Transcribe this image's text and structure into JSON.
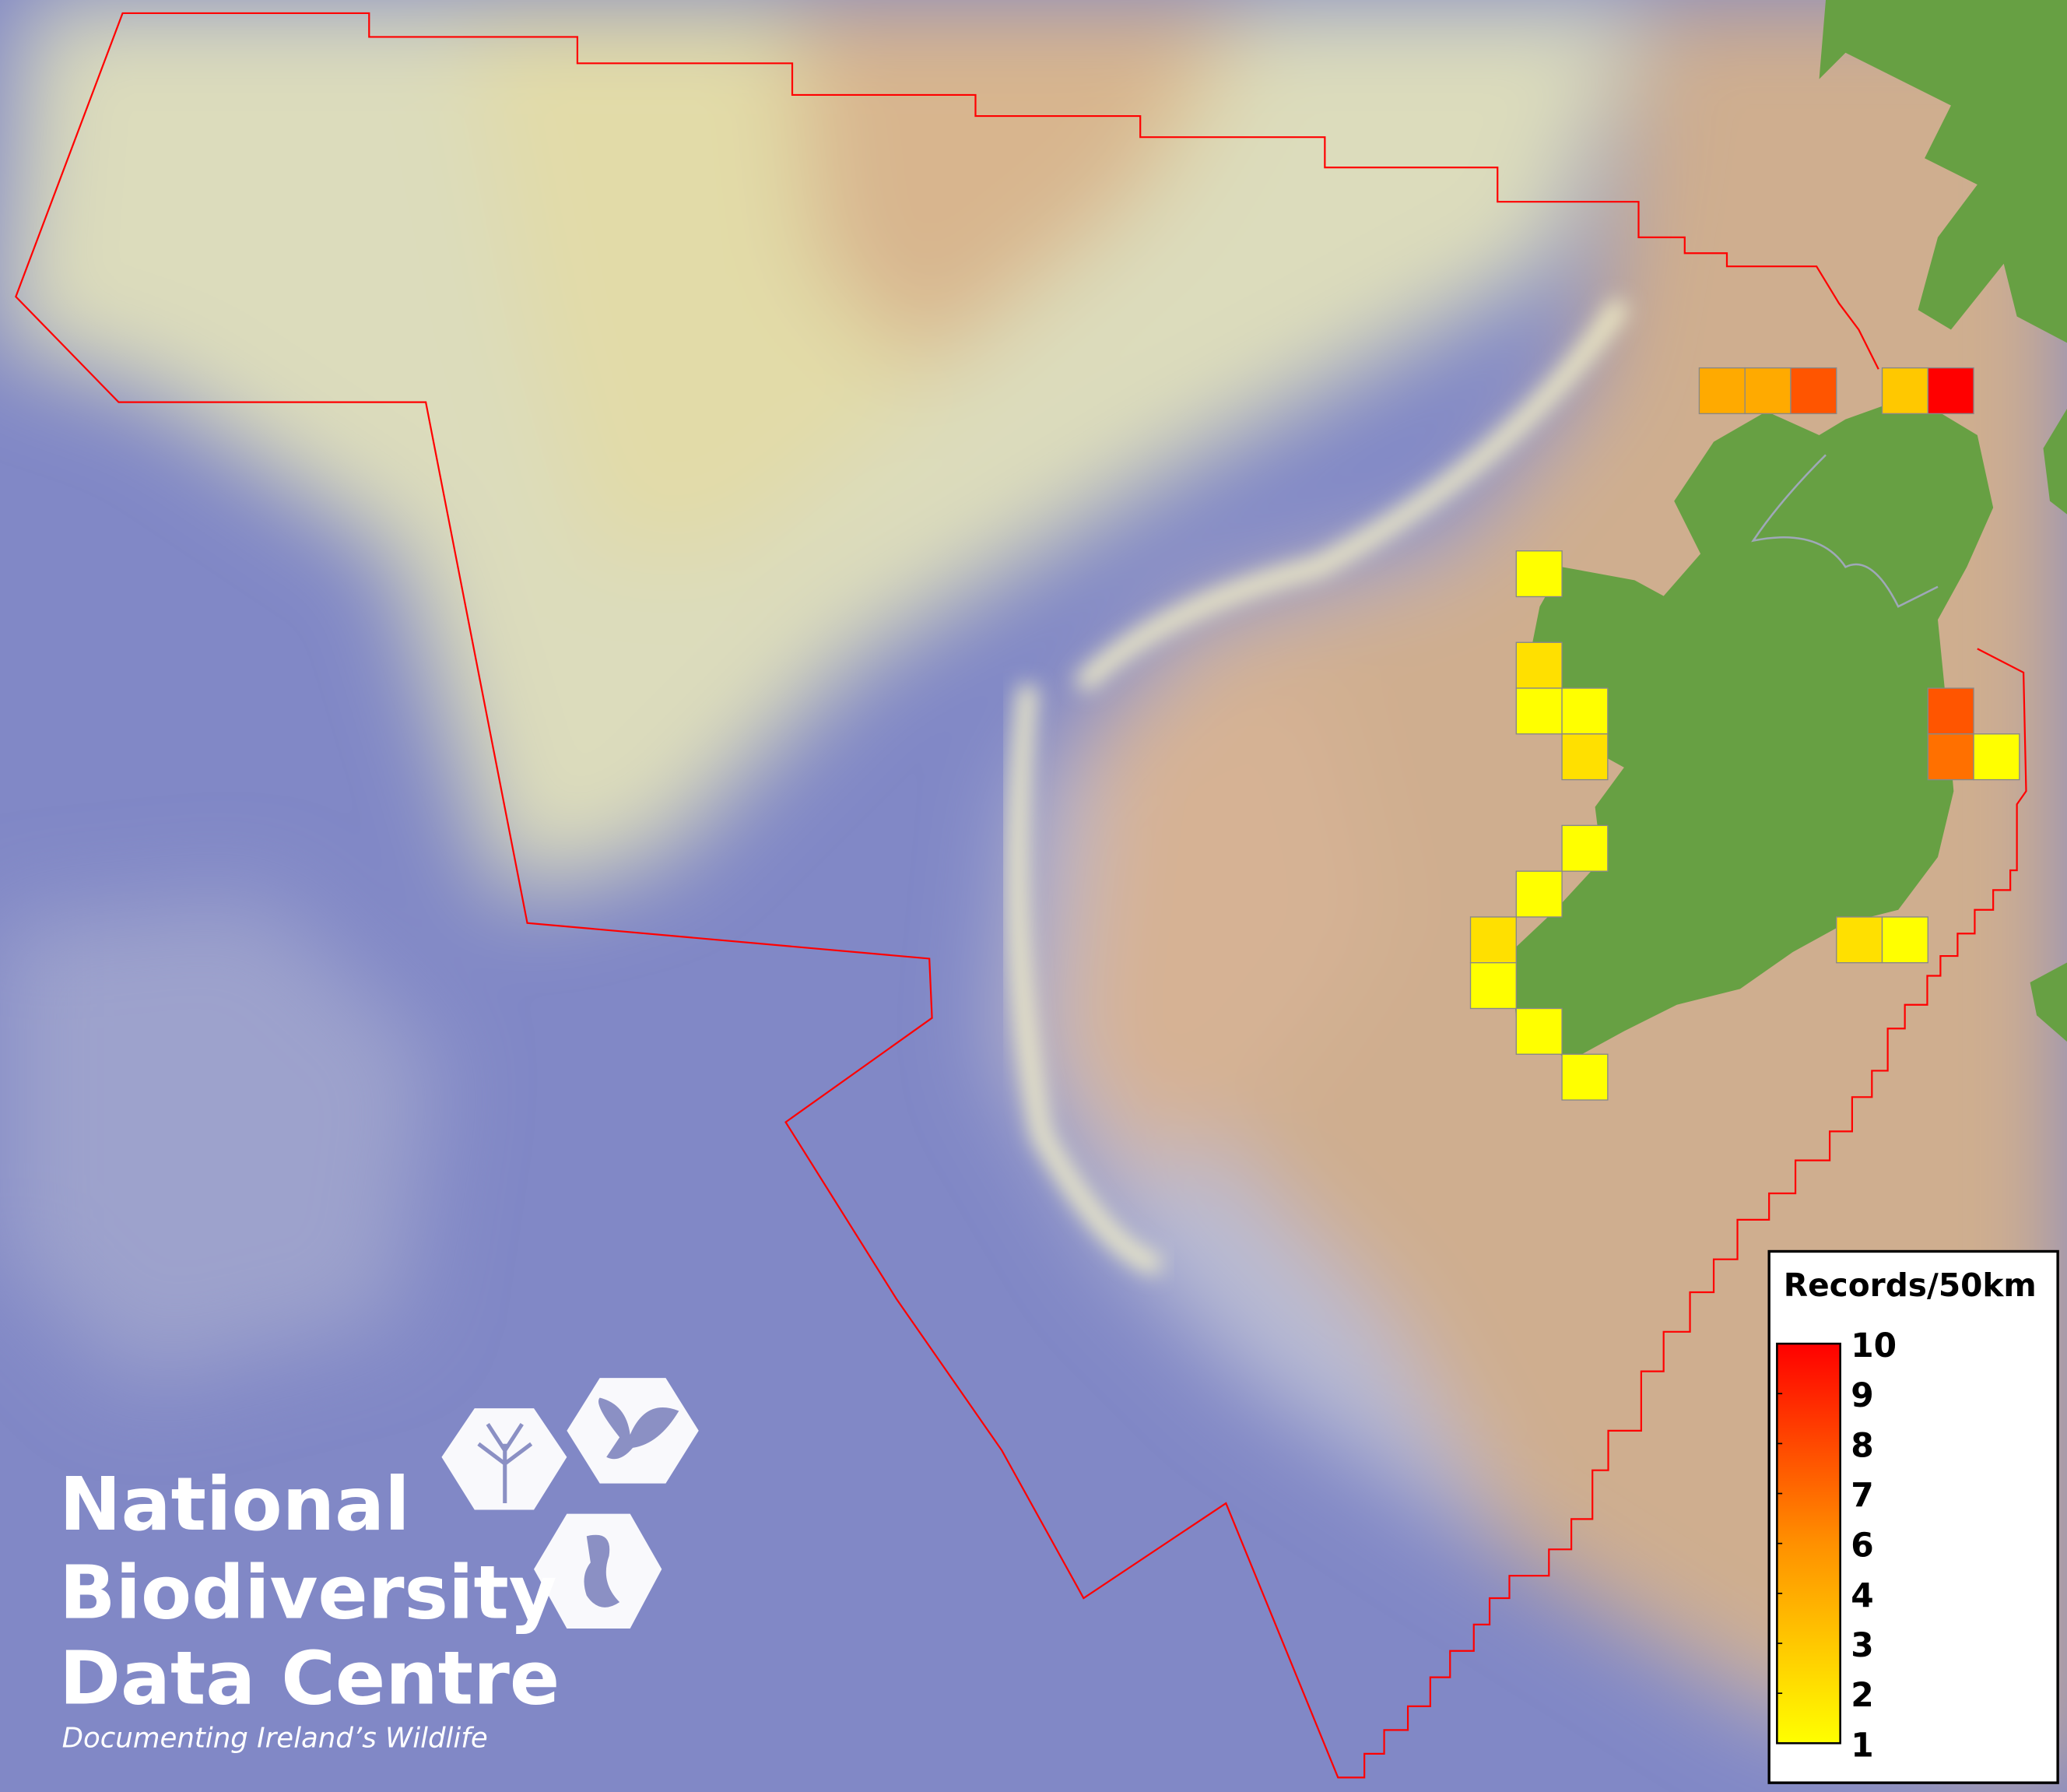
{
  "legend": {
    "title": "Records/50km",
    "ticks": [
      "10",
      "9",
      "8",
      "7",
      "6",
      "4",
      "3",
      "2",
      "1"
    ],
    "color_low": "#ffff00",
    "color_high": "#ff0000"
  },
  "grid_cells": [
    {
      "col": 0,
      "row": 0,
      "value": 4
    },
    {
      "col": 1,
      "row": 0,
      "value": 4
    },
    {
      "col": 2,
      "row": 0,
      "value": 7
    },
    {
      "col": 4,
      "row": 0,
      "value": 3
    },
    {
      "col": 5,
      "row": 0,
      "value": 10
    },
    {
      "col": -4,
      "row": 4,
      "value": 1
    },
    {
      "col": -4,
      "row": 6,
      "value": 2
    },
    {
      "col": -4,
      "row": 7,
      "value": 1
    },
    {
      "col": -3,
      "row": 7,
      "value": 1
    },
    {
      "col": -3,
      "row": 8,
      "value": 2
    },
    {
      "col": -3,
      "row": 10,
      "value": 1
    },
    {
      "col": -4,
      "row": 11,
      "value": 1
    },
    {
      "col": -5,
      "row": 12,
      "value": 2
    },
    {
      "col": -5,
      "row": 13,
      "value": 1
    },
    {
      "col": -4,
      "row": 14,
      "value": 1
    },
    {
      "col": -3,
      "row": 15,
      "value": 1
    },
    {
      "col": 5,
      "row": 7,
      "value": 7
    },
    {
      "col": 5,
      "row": 8,
      "value": 6
    },
    {
      "col": 6,
      "row": 8,
      "value": 1
    },
    {
      "col": 3,
      "row": 12,
      "value": 2
    },
    {
      "col": 4,
      "row": 12,
      "value": 1
    }
  ],
  "cell_colors": {
    "1": "#ffff00",
    "2": "#ffe000",
    "3": "#ffc800",
    "4": "#ffaa00",
    "6": "#ff7000",
    "7": "#ff5500",
    "10": "#ff0000"
  },
  "boundary_color": "#ff0000",
  "land_color": "#67a043",
  "logo": {
    "line1": "National",
    "line2": "Biodiversity",
    "line3": "Data Centre",
    "tagline": "Documenting Ireland’s Wildlife"
  }
}
